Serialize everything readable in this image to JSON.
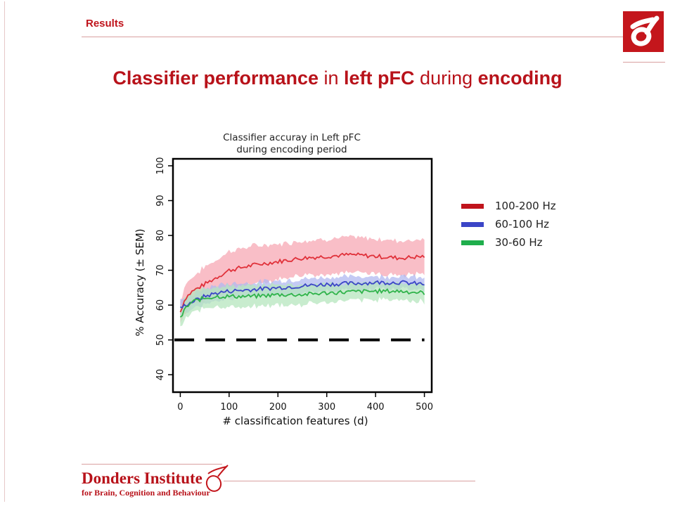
{
  "header": {
    "section": "Results",
    "title_parts": [
      {
        "text": "Classifier performance",
        "bold": true
      },
      {
        "text": " in ",
        "bold": false
      },
      {
        "text": "left pFC",
        "bold": true
      },
      {
        "text": " during ",
        "bold": false
      },
      {
        "text": "encoding",
        "bold": true
      }
    ]
  },
  "logo": {
    "icon": "donders-delta-logo-icon",
    "color": "#c4161c"
  },
  "footer": {
    "name": "Donders Institute",
    "subtitle": "for Brain, Cognition and Behaviour",
    "icon": "donders-delta-outline-icon"
  },
  "legend": {
    "items": [
      {
        "label": "100-200 Hz",
        "color": "#c0141c"
      },
      {
        "label": "60-100 Hz",
        "color": "#3b45c7"
      },
      {
        "label": "30-60 Hz",
        "color": "#1fae4c"
      }
    ]
  },
  "chart_data": {
    "type": "line",
    "title_lines": [
      "Classifier accuray in Left pFC",
      "during encoding period"
    ],
    "xlabel": "# classification features (d)",
    "ylabel": "% Accuracy (± SEM)",
    "xlim": [
      -15,
      515
    ],
    "ylim": [
      35,
      102
    ],
    "xticks": [
      0,
      100,
      200,
      300,
      400,
      500
    ],
    "yticks": [
      40,
      50,
      60,
      70,
      80,
      90,
      100
    ],
    "chance_level": 50,
    "grid": false,
    "series": [
      {
        "name": "100-200 Hz",
        "color": "#e0313a",
        "band_color": "#f7a8b4",
        "x": [
          0,
          10,
          25,
          50,
          75,
          100,
          150,
          200,
          250,
          300,
          350,
          400,
          450,
          500
        ],
        "y": [
          58,
          62,
          64,
          66,
          68,
          70,
          71.5,
          72.5,
          73.5,
          74,
          74.5,
          74,
          73.5,
          74
        ],
        "sem": [
          3,
          4,
          4,
          5,
          5,
          5.5,
          5.5,
          5,
          5,
          5,
          5,
          5,
          5,
          5
        ]
      },
      {
        "name": "60-100 Hz",
        "color": "#3b45c7",
        "band_color": "#b0b8f0",
        "x": [
          0,
          10,
          25,
          50,
          75,
          100,
          150,
          200,
          250,
          300,
          350,
          400,
          450,
          500
        ],
        "y": [
          59,
          60,
          61,
          62.5,
          63.5,
          64,
          64.5,
          65,
          65.5,
          66,
          66.2,
          66.5,
          66.5,
          66
        ],
        "sem": [
          2,
          2,
          2,
          2.2,
          2.2,
          2.2,
          2,
          2,
          2,
          2,
          2,
          1.8,
          1.8,
          1.8
        ]
      },
      {
        "name": "30-60 Hz",
        "color": "#2fb34a",
        "band_color": "#b6e6bd",
        "x": [
          0,
          10,
          25,
          50,
          75,
          100,
          150,
          200,
          250,
          300,
          350,
          400,
          450,
          500
        ],
        "y": [
          56,
          59,
          61,
          62,
          62.5,
          62.5,
          62.5,
          63,
          63,
          63.5,
          63.8,
          64,
          64,
          63.5
        ],
        "sem": [
          3,
          3,
          3,
          3,
          3,
          3,
          3,
          3,
          3,
          2.5,
          2.5,
          2.5,
          2.5,
          2.5
        ]
      }
    ]
  }
}
